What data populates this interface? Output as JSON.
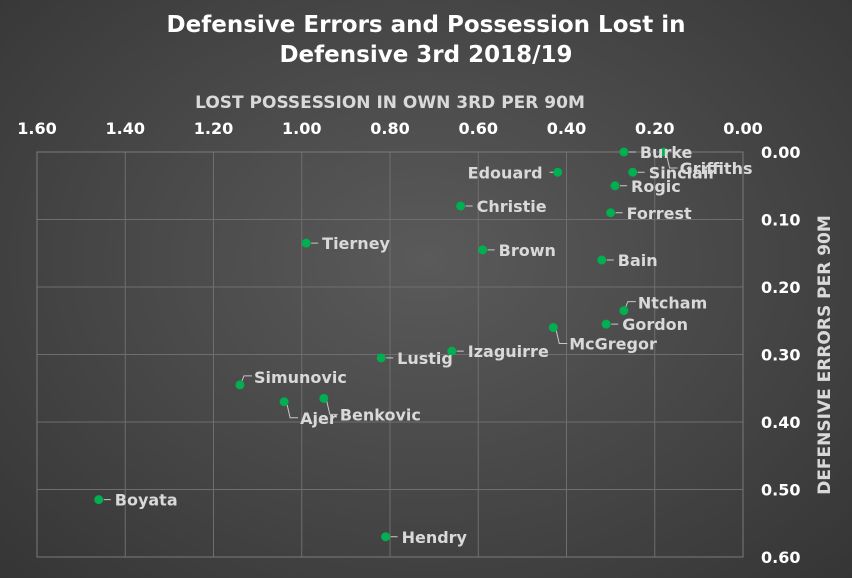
{
  "chart_data": {
    "type": "scatter",
    "title_line1": "Defensive Errors and Possession Lost in",
    "title_line2": "Defensive 3rd 2018/19",
    "xlabel": "LOST POSSESSION IN OWN 3RD PER 90M",
    "ylabel": "DEFENSIVE ERRORS PER 90M",
    "xlim": [
      0,
      1.6
    ],
    "ylim": [
      0,
      0.6
    ],
    "x_reversed": true,
    "y_reversed": true,
    "x_axis_position": "top",
    "y_axis_position": "right",
    "x_ticks": [
      "1.60",
      "1.40",
      "1.20",
      "1.00",
      "0.80",
      "0.60",
      "0.40",
      "0.20",
      "0.00"
    ],
    "x_tick_values": [
      1.6,
      1.4,
      1.2,
      1.0,
      0.8,
      0.6,
      0.4,
      0.2,
      0.0
    ],
    "y_ticks": [
      "0.00",
      "0.10",
      "0.20",
      "0.30",
      "0.40",
      "0.50",
      "0.60"
    ],
    "y_tick_values": [
      0.0,
      0.1,
      0.2,
      0.3,
      0.4,
      0.5,
      0.6
    ],
    "grid": true,
    "marker_color": "#00b050",
    "points": [
      {
        "name": "Burke",
        "x": 0.27,
        "y": 0.0,
        "label_pos": "right"
      },
      {
        "name": "Griffiths",
        "x": 0.18,
        "y": 0.0,
        "label_pos": "right-down"
      },
      {
        "name": "Sinclair",
        "x": 0.25,
        "y": 0.03,
        "label_pos": "right"
      },
      {
        "name": "Edouard",
        "x": 0.42,
        "y": 0.03,
        "label_pos": "left"
      },
      {
        "name": "Rogic",
        "x": 0.29,
        "y": 0.05,
        "label_pos": "right"
      },
      {
        "name": "Christie",
        "x": 0.64,
        "y": 0.08,
        "label_pos": "right"
      },
      {
        "name": "Forrest",
        "x": 0.3,
        "y": 0.09,
        "label_pos": "right"
      },
      {
        "name": "Tierney",
        "x": 0.99,
        "y": 0.135,
        "label_pos": "right"
      },
      {
        "name": "Brown",
        "x": 0.59,
        "y": 0.145,
        "label_pos": "right"
      },
      {
        "name": "Bain",
        "x": 0.32,
        "y": 0.16,
        "label_pos": "right"
      },
      {
        "name": "Ntcham",
        "x": 0.27,
        "y": 0.235,
        "label_pos": "right-up"
      },
      {
        "name": "Gordon",
        "x": 0.31,
        "y": 0.255,
        "label_pos": "right"
      },
      {
        "name": "McGregor",
        "x": 0.43,
        "y": 0.26,
        "label_pos": "right-down"
      },
      {
        "name": "Izaguirre",
        "x": 0.66,
        "y": 0.295,
        "label_pos": "right"
      },
      {
        "name": "Lustig",
        "x": 0.82,
        "y": 0.305,
        "label_pos": "right"
      },
      {
        "name": "Simunovic",
        "x": 1.14,
        "y": 0.345,
        "label_pos": "right-up"
      },
      {
        "name": "Benkovic",
        "x": 0.95,
        "y": 0.365,
        "label_pos": "right-down"
      },
      {
        "name": "Ajer",
        "x": 1.04,
        "y": 0.37,
        "label_pos": "right-down"
      },
      {
        "name": "Boyata",
        "x": 1.46,
        "y": 0.515,
        "label_pos": "right"
      },
      {
        "name": "Hendry",
        "x": 0.81,
        "y": 0.57,
        "label_pos": "right"
      }
    ]
  }
}
